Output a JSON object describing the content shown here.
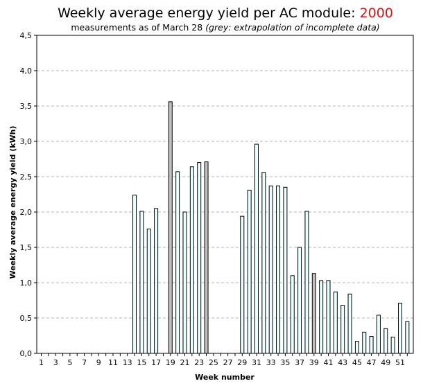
{
  "chart_data": {
    "type": "bar",
    "title": "Weekly average energy yield per AC module: ",
    "title_year": "2000",
    "subtitle": "measurements as of March 28 ",
    "subtitle_note": "(grey: extrapolation of incomplete data)",
    "xlabel": "Week number",
    "ylabel": "Weekly average energy yield (kWh)",
    "ylim": [
      0,
      4.5
    ],
    "yticks": [
      "0,0",
      "0,5",
      "1,0",
      "1,5",
      "2,0",
      "2,5",
      "3,0",
      "3,5",
      "4,0",
      "4,5"
    ],
    "xtick_labels": [
      "1",
      "3",
      "5",
      "7",
      "9",
      "11",
      "13",
      "15",
      "17",
      "19",
      "21",
      "23",
      "25",
      "27",
      "29",
      "31",
      "33",
      "35",
      "37",
      "39",
      "41",
      "43",
      "45",
      "47",
      "49",
      "51"
    ],
    "grid": "horizontal dashed",
    "colors": {
      "measured": "#e8ffff",
      "extrapolated": "#c0c0c0",
      "bar_edge": "#000000",
      "title_year": "#e01010"
    },
    "weeks": [
      1,
      2,
      3,
      4,
      5,
      6,
      7,
      8,
      9,
      10,
      11,
      12,
      13,
      14,
      15,
      16,
      17,
      18,
      19,
      20,
      21,
      22,
      23,
      24,
      25,
      26,
      27,
      28,
      29,
      30,
      31,
      32,
      33,
      34,
      35,
      36,
      37,
      38,
      39,
      40,
      41,
      42,
      43,
      44,
      45,
      46,
      47,
      48,
      49,
      50,
      51,
      52
    ],
    "values": [
      0,
      0,
      0,
      0,
      0,
      0,
      0,
      0,
      0,
      0,
      0,
      0,
      0,
      2.24,
      2.01,
      1.76,
      2.05,
      0,
      3.56,
      2.57,
      2.0,
      2.64,
      2.7,
      2.71,
      0,
      0,
      0,
      0,
      1.94,
      2.31,
      2.96,
      2.56,
      2.37,
      2.37,
      2.35,
      1.1,
      1.5,
      2.01,
      1.13,
      1.03,
      1.03,
      0.87,
      0.68,
      0.84,
      0.17,
      0.3,
      0.24,
      0.54,
      0.35,
      0.23,
      0.71,
      0.45
    ],
    "extrapolated_weeks": [
      19,
      24,
      39
    ]
  }
}
